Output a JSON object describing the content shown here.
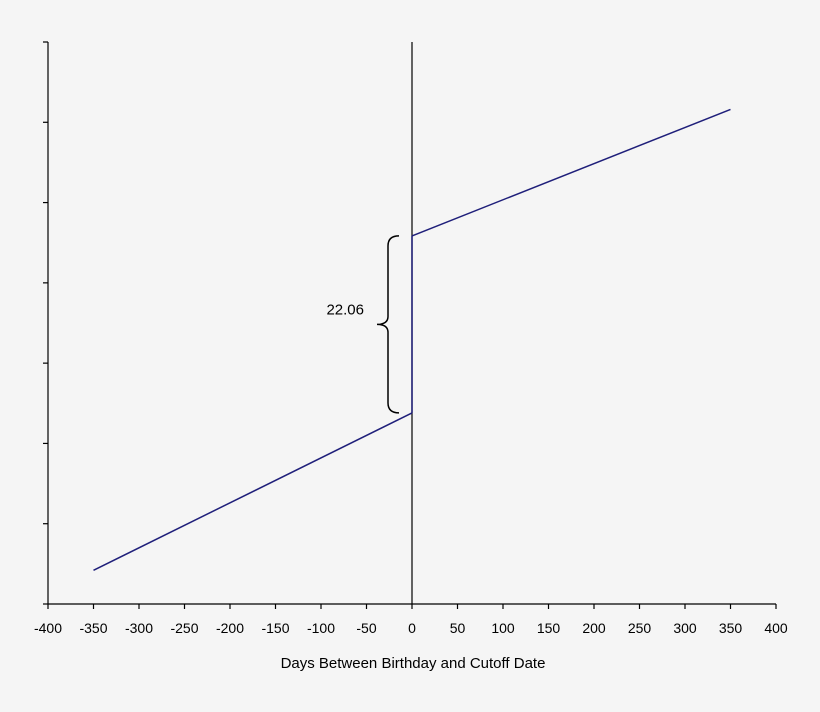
{
  "chart_data": {
    "type": "line",
    "xlabel": "Days Between Birthday and Cutoff Date",
    "ylabel": "",
    "xlim": [
      -400,
      400
    ],
    "x_ticks": [
      -400,
      -350,
      -300,
      -250,
      -200,
      -150,
      -100,
      -50,
      0,
      50,
      100,
      150,
      200,
      250,
      300,
      350,
      400
    ],
    "y_tick_count": 8,
    "grid": false,
    "colors": {
      "series": "#1f1f7a",
      "axes": "#000000",
      "background": "#f5f5f5"
    },
    "series": [
      {
        "segment": "left",
        "x": [
          -350,
          0
        ],
        "y": [
          0.06,
          0.34
        ]
      },
      {
        "segment": "right",
        "x": [
          0,
          350
        ],
        "y": [
          0.655,
          0.88
        ]
      }
    ],
    "annotations": [
      {
        "text": "22.06",
        "x": 0,
        "y_from": 0.34,
        "y_to": 0.655,
        "marker": "curly-brace"
      }
    ]
  }
}
